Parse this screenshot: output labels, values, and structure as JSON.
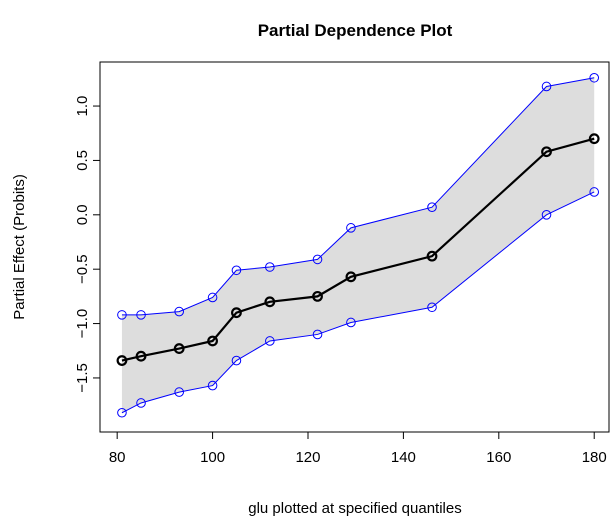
{
  "chart_data": {
    "type": "line",
    "title": "Partial Dependence Plot",
    "x_label": "glu plotted at specified quantiles",
    "y_label": "Partial Effect (Probits)",
    "x": [
      81,
      85,
      93,
      100,
      105,
      112,
      122,
      129,
      146,
      170,
      180
    ],
    "series": [
      {
        "color": "#000000",
        "values": [
          -1.34,
          -1.3,
          -1.23,
          -1.16,
          -0.9,
          -0.8,
          -0.75,
          -0.57,
          -0.38,
          0.58,
          0.7
        ]
      },
      {
        "color": "#0000ff",
        "values": [
          -0.92,
          -0.92,
          -0.89,
          -0.76,
          -0.51,
          -0.48,
          -0.41,
          -0.12,
          0.07,
          1.18,
          1.26
        ]
      },
      {
        "color": "#0000ff",
        "values": [
          -1.82,
          -1.73,
          -1.63,
          -1.57,
          -1.34,
          -1.16,
          -1.1,
          -0.99,
          -0.85,
          0.0,
          0.21
        ]
      }
    ],
    "band_color": "#dddddd",
    "xlim": [
      76.4,
      183.1
    ],
    "ylim": [
      -1.997,
      1.405
    ],
    "xticks": [
      80,
      100,
      120,
      140,
      160,
      180
    ],
    "yticks": [
      {
        "value": -1.5,
        "label": "−1.5"
      },
      {
        "value": -1.0,
        "label": "−1.0"
      },
      {
        "value": -0.5,
        "label": "−0.5"
      },
      {
        "value": 0.0,
        "label": "0.0"
      },
      0.5,
      {
        "value": 1.0,
        "label": "1.0"
      }
    ]
  }
}
